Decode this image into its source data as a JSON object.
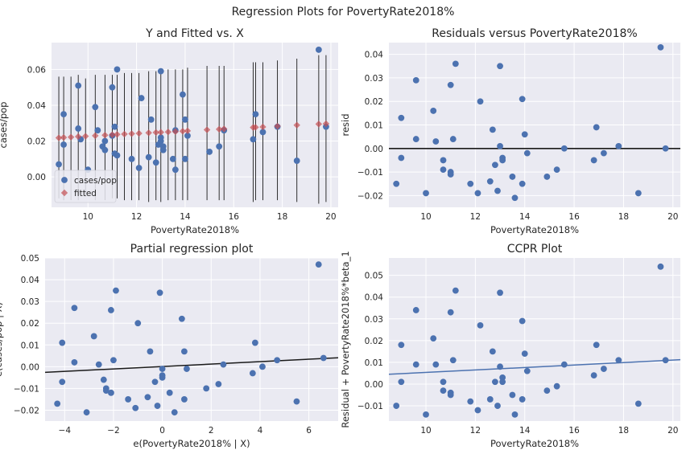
{
  "figure": {
    "suptitle": "Regression Plots for PovertyRate2018%",
    "background": "#ffffff",
    "axes_bg": "#eaeaf2",
    "grid_color": "#ffffff",
    "blue": "#4c72b0",
    "red": "#c44e52"
  },
  "chart_data": [
    {
      "id": "yfit",
      "type": "scatter",
      "title": "Y and Fitted vs. X",
      "xlabel": "PovertyRate2018%",
      "ylabel": "cases/pop",
      "xlim": [
        8.5,
        20.3
      ],
      "ylim": [
        -0.017,
        0.075
      ],
      "xticks": [
        10,
        12,
        14,
        16,
        18,
        20
      ],
      "yticks": [
        0.0,
        0.02,
        0.04,
        0.06
      ],
      "ytick_labels": [
        "0.00",
        "0.02",
        "0.04",
        "0.06"
      ],
      "legend": {
        "placement": "lower-left",
        "entries": [
          "cases/pop",
          "fitted"
        ]
      },
      "series": [
        {
          "name": "cases/pop",
          "marker": "circle",
          "color": "#4c72b0",
          "x": [
            8.8,
            9.0,
            9.0,
            9.6,
            9.6,
            9.7,
            10.0,
            10.3,
            10.4,
            10.6,
            10.7,
            10.7,
            11.0,
            11.0,
            11.1,
            11.1,
            11.2,
            11.2,
            11.8,
            12.1,
            12.2,
            12.5,
            12.6,
            12.8,
            12.9,
            13.0,
            13.0,
            13.0,
            13.1,
            13.1,
            13.5,
            13.6,
            13.6,
            13.9,
            14.0,
            14.0,
            14.1,
            15.0,
            15.4,
            15.6,
            16.8,
            16.9,
            17.2,
            17.8,
            18.6,
            19.5,
            19.8
          ],
          "y": [
            0.007,
            0.035,
            0.018,
            0.051,
            0.027,
            0.021,
            0.004,
            0.039,
            0.026,
            0.017,
            0.015,
            0.02,
            0.05,
            0.023,
            0.013,
            0.028,
            0.06,
            0.012,
            0.01,
            0.005,
            0.044,
            0.011,
            0.032,
            0.008,
            0.018,
            0.059,
            0.022,
            0.02,
            0.017,
            0.015,
            0.01,
            0.004,
            0.026,
            0.046,
            0.032,
            0.01,
            0.023,
            0.014,
            0.017,
            0.026,
            0.021,
            0.035,
            0.025,
            0.028,
            0.009,
            0.071,
            0.028
          ]
        },
        {
          "name": "fitted",
          "marker": "diamond",
          "color": "#c44e52",
          "x": [
            8.8,
            9.0,
            9.3,
            9.6,
            9.9,
            10.3,
            10.7,
            11.0,
            11.2,
            11.5,
            11.8,
            12.1,
            12.5,
            12.8,
            13.0,
            13.3,
            13.6,
            13.9,
            14.1,
            14.9,
            15.4,
            15.6,
            16.8,
            16.9,
            17.2,
            17.8,
            18.6,
            19.5,
            19.8
          ],
          "y": [
            0.0218,
            0.022,
            0.0222,
            0.0225,
            0.0227,
            0.023,
            0.0233,
            0.0235,
            0.0237,
            0.0239,
            0.0241,
            0.0243,
            0.0246,
            0.0248,
            0.0249,
            0.0251,
            0.0253,
            0.0255,
            0.0257,
            0.0263,
            0.0266,
            0.0268,
            0.0276,
            0.0277,
            0.0279,
            0.0283,
            0.0289,
            0.0295,
            0.0297
          ]
        }
      ],
      "error_bars": {
        "x": [
          8.8,
          9.0,
          9.3,
          9.6,
          9.9,
          10.3,
          10.7,
          11.0,
          11.2,
          11.5,
          11.8,
          12.1,
          12.5,
          12.8,
          13.0,
          13.3,
          13.6,
          13.9,
          14.1,
          14.9,
          15.4,
          15.6,
          16.8,
          16.9,
          17.2,
          17.8,
          18.6,
          19.5,
          19.8
        ],
        "low": [
          -0.012,
          -0.013,
          -0.013,
          -0.013,
          -0.011,
          -0.013,
          -0.013,
          -0.012,
          -0.012,
          -0.013,
          -0.013,
          -0.013,
          -0.014,
          -0.013,
          -0.014,
          -0.013,
          -0.013,
          -0.013,
          -0.013,
          -0.013,
          -0.013,
          -0.013,
          -0.014,
          -0.013,
          -0.013,
          -0.013,
          -0.014,
          -0.015,
          -0.014
        ],
        "high": [
          0.056,
          0.056,
          0.056,
          0.057,
          0.055,
          0.057,
          0.057,
          0.057,
          0.057,
          0.058,
          0.058,
          0.058,
          0.059,
          0.059,
          0.06,
          0.06,
          0.06,
          0.06,
          0.061,
          0.062,
          0.062,
          0.062,
          0.064,
          0.064,
          0.064,
          0.065,
          0.066,
          0.068,
          0.068
        ]
      }
    },
    {
      "id": "resid",
      "type": "scatter",
      "title": "Residuals versus PovertyRate2018%",
      "xlabel": "PovertyRate2018%",
      "ylabel": "resid",
      "xlim": [
        8.5,
        20.3
      ],
      "ylim": [
        -0.025,
        0.045
      ],
      "xticks": [
        10,
        12,
        14,
        16,
        18,
        20
      ],
      "yticks": [
        -0.02,
        -0.01,
        0.0,
        0.01,
        0.02,
        0.03,
        0.04
      ],
      "ytick_labels": [
        "−0.02",
        "−0.01",
        "0.00",
        "0.01",
        "0.02",
        "0.03",
        "0.04"
      ],
      "hline": 0.0,
      "series": [
        {
          "name": "",
          "marker": "circle",
          "color": "#4c72b0",
          "x": [
            8.8,
            9.0,
            9.0,
            9.6,
            9.6,
            10.0,
            10.3,
            10.4,
            10.7,
            10.7,
            11.0,
            11.0,
            11.0,
            11.1,
            11.2,
            11.8,
            12.1,
            12.2,
            12.6,
            12.7,
            12.8,
            12.9,
            13.0,
            13.0,
            13.1,
            13.1,
            13.5,
            13.6,
            13.9,
            13.9,
            14.0,
            14.1,
            14.9,
            15.3,
            15.6,
            16.8,
            16.9,
            17.2,
            17.8,
            18.6,
            19.5,
            19.7
          ],
          "y": [
            -0.015,
            0.013,
            -0.004,
            0.029,
            0.004,
            -0.019,
            0.016,
            0.003,
            -0.005,
            -0.009,
            0.027,
            -0.011,
            -0.01,
            0.004,
            0.036,
            -0.015,
            -0.019,
            0.02,
            -0.014,
            0.008,
            -0.007,
            -0.018,
            0.035,
            0.001,
            -0.004,
            -0.005,
            -0.012,
            -0.021,
            0.021,
            -0.015,
            0.006,
            -0.002,
            -0.012,
            -0.009,
            0.0,
            -0.005,
            0.009,
            -0.002,
            0.001,
            -0.019,
            0.043,
            0.0
          ]
        }
      ]
    },
    {
      "id": "partreg",
      "type": "scatter",
      "title": "Partial regression plot",
      "xlabel": "e(PovertyRate2018% | X)",
      "ylabel": "e(cases/pop | X)",
      "xlim": [
        -4.8,
        7.2
      ],
      "ylim": [
        -0.025,
        0.05
      ],
      "xticks": [
        -4,
        -2,
        0,
        2,
        4,
        6
      ],
      "xtick_labels": [
        "−4",
        "−2",
        "0",
        "2",
        "4",
        "6"
      ],
      "yticks": [
        -0.02,
        -0.01,
        0.0,
        0.01,
        0.02,
        0.03,
        0.04,
        0.05
      ],
      "ytick_labels": [
        "−0.02",
        "−0.01",
        "0.00",
        "0.01",
        "0.02",
        "0.03",
        "0.04",
        "0.05"
      ],
      "fit_line": {
        "x": [
          -4.8,
          7.2
        ],
        "y": [
          -0.0026,
          0.0041
        ]
      },
      "series": [
        {
          "name": "",
          "marker": "circle",
          "color": "#4c72b0",
          "x": [
            -4.3,
            -4.1,
            -4.1,
            -3.6,
            -3.6,
            -3.1,
            -2.8,
            -2.6,
            -2.4,
            -2.3,
            -2.3,
            -2.1,
            -2.1,
            -2.0,
            -1.9,
            -1.4,
            -1.1,
            -1.0,
            -0.6,
            -0.5,
            -0.3,
            -0.2,
            -0.1,
            0.0,
            0.0,
            0.0,
            0.3,
            0.5,
            0.8,
            0.9,
            0.9,
            1.0,
            1.8,
            2.3,
            2.5,
            3.7,
            3.8,
            4.1,
            4.7,
            5.5,
            6.4,
            6.6
          ],
          "y": [
            -0.017,
            0.011,
            -0.007,
            0.027,
            0.002,
            -0.021,
            0.014,
            0.001,
            -0.006,
            -0.01,
            -0.011,
            0.026,
            -0.012,
            0.003,
            0.035,
            -0.015,
            -0.019,
            0.02,
            -0.014,
            0.007,
            -0.007,
            -0.018,
            0.034,
            -0.004,
            -0.005,
            -0.001,
            -0.012,
            -0.021,
            0.022,
            -0.015,
            0.007,
            -0.001,
            -0.01,
            -0.008,
            0.001,
            -0.003,
            0.011,
            0.0,
            0.003,
            -0.016,
            0.047,
            0.004
          ]
        }
      ]
    },
    {
      "id": "ccpr",
      "type": "scatter",
      "title": "CCPR Plot",
      "xlabel": "PovertyRate2018%",
      "ylabel": "Residual + PovertyRate2018%*beta_1",
      "xlim": [
        8.5,
        20.3
      ],
      "ylim": [
        -0.017,
        0.058
      ],
      "xticks": [
        10,
        12,
        14,
        16,
        18,
        20
      ],
      "yticks": [
        -0.01,
        0.0,
        0.01,
        0.02,
        0.03,
        0.04,
        0.05
      ],
      "ytick_labels": [
        "−0.01",
        "0.00",
        "0.01",
        "0.02",
        "0.03",
        "0.04",
        "0.05"
      ],
      "fit_line": {
        "x": [
          8.5,
          20.3
        ],
        "y": [
          0.0045,
          0.0112
        ]
      },
      "series": [
        {
          "name": "",
          "marker": "circle",
          "color": "#4c72b0",
          "x": [
            8.8,
            9.0,
            9.0,
            9.6,
            9.6,
            10.0,
            10.3,
            10.4,
            10.7,
            10.7,
            11.0,
            11.0,
            11.0,
            11.1,
            11.2,
            11.8,
            12.1,
            12.2,
            12.6,
            12.7,
            12.8,
            12.9,
            13.0,
            13.0,
            13.1,
            13.1,
            13.5,
            13.6,
            13.9,
            13.9,
            14.0,
            14.1,
            14.9,
            15.3,
            15.6,
            16.8,
            16.9,
            17.2,
            17.8,
            18.6,
            19.5,
            19.7
          ],
          "y": [
            -0.01,
            0.018,
            0.001,
            0.034,
            0.009,
            -0.014,
            0.021,
            0.009,
            0.001,
            -0.003,
            0.033,
            -0.005,
            -0.004,
            0.011,
            0.043,
            -0.008,
            -0.012,
            0.027,
            -0.007,
            0.015,
            0.001,
            -0.01,
            0.042,
            0.008,
            0.003,
            0.001,
            -0.005,
            -0.014,
            0.029,
            -0.007,
            0.014,
            0.006,
            -0.003,
            -0.001,
            0.009,
            0.004,
            0.018,
            0.007,
            0.011,
            -0.009,
            0.054,
            0.011
          ]
        }
      ]
    }
  ]
}
